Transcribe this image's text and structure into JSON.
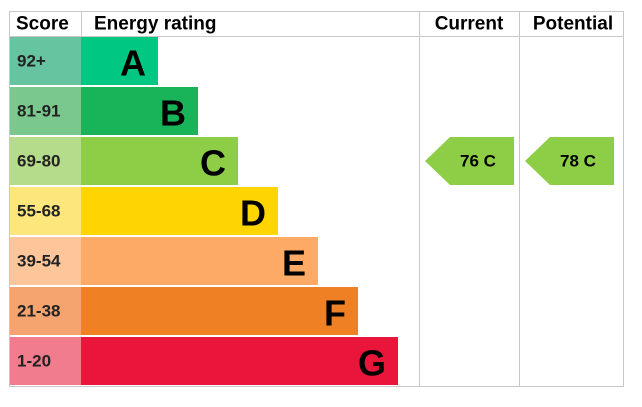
{
  "header": {
    "score": "Score",
    "rating": "Energy rating",
    "current": "Current",
    "potential": "Potential"
  },
  "bands": [
    {
      "score": "92+",
      "letter": "A"
    },
    {
      "score": "81-91",
      "letter": "B"
    },
    {
      "score": "69-80",
      "letter": "C"
    },
    {
      "score": "55-68",
      "letter": "D"
    },
    {
      "score": "39-54",
      "letter": "E"
    },
    {
      "score": "21-38",
      "letter": "F"
    },
    {
      "score": "1-20",
      "letter": "G"
    }
  ],
  "current": {
    "label": "76 C"
  },
  "potential": {
    "label": "78 C"
  }
}
